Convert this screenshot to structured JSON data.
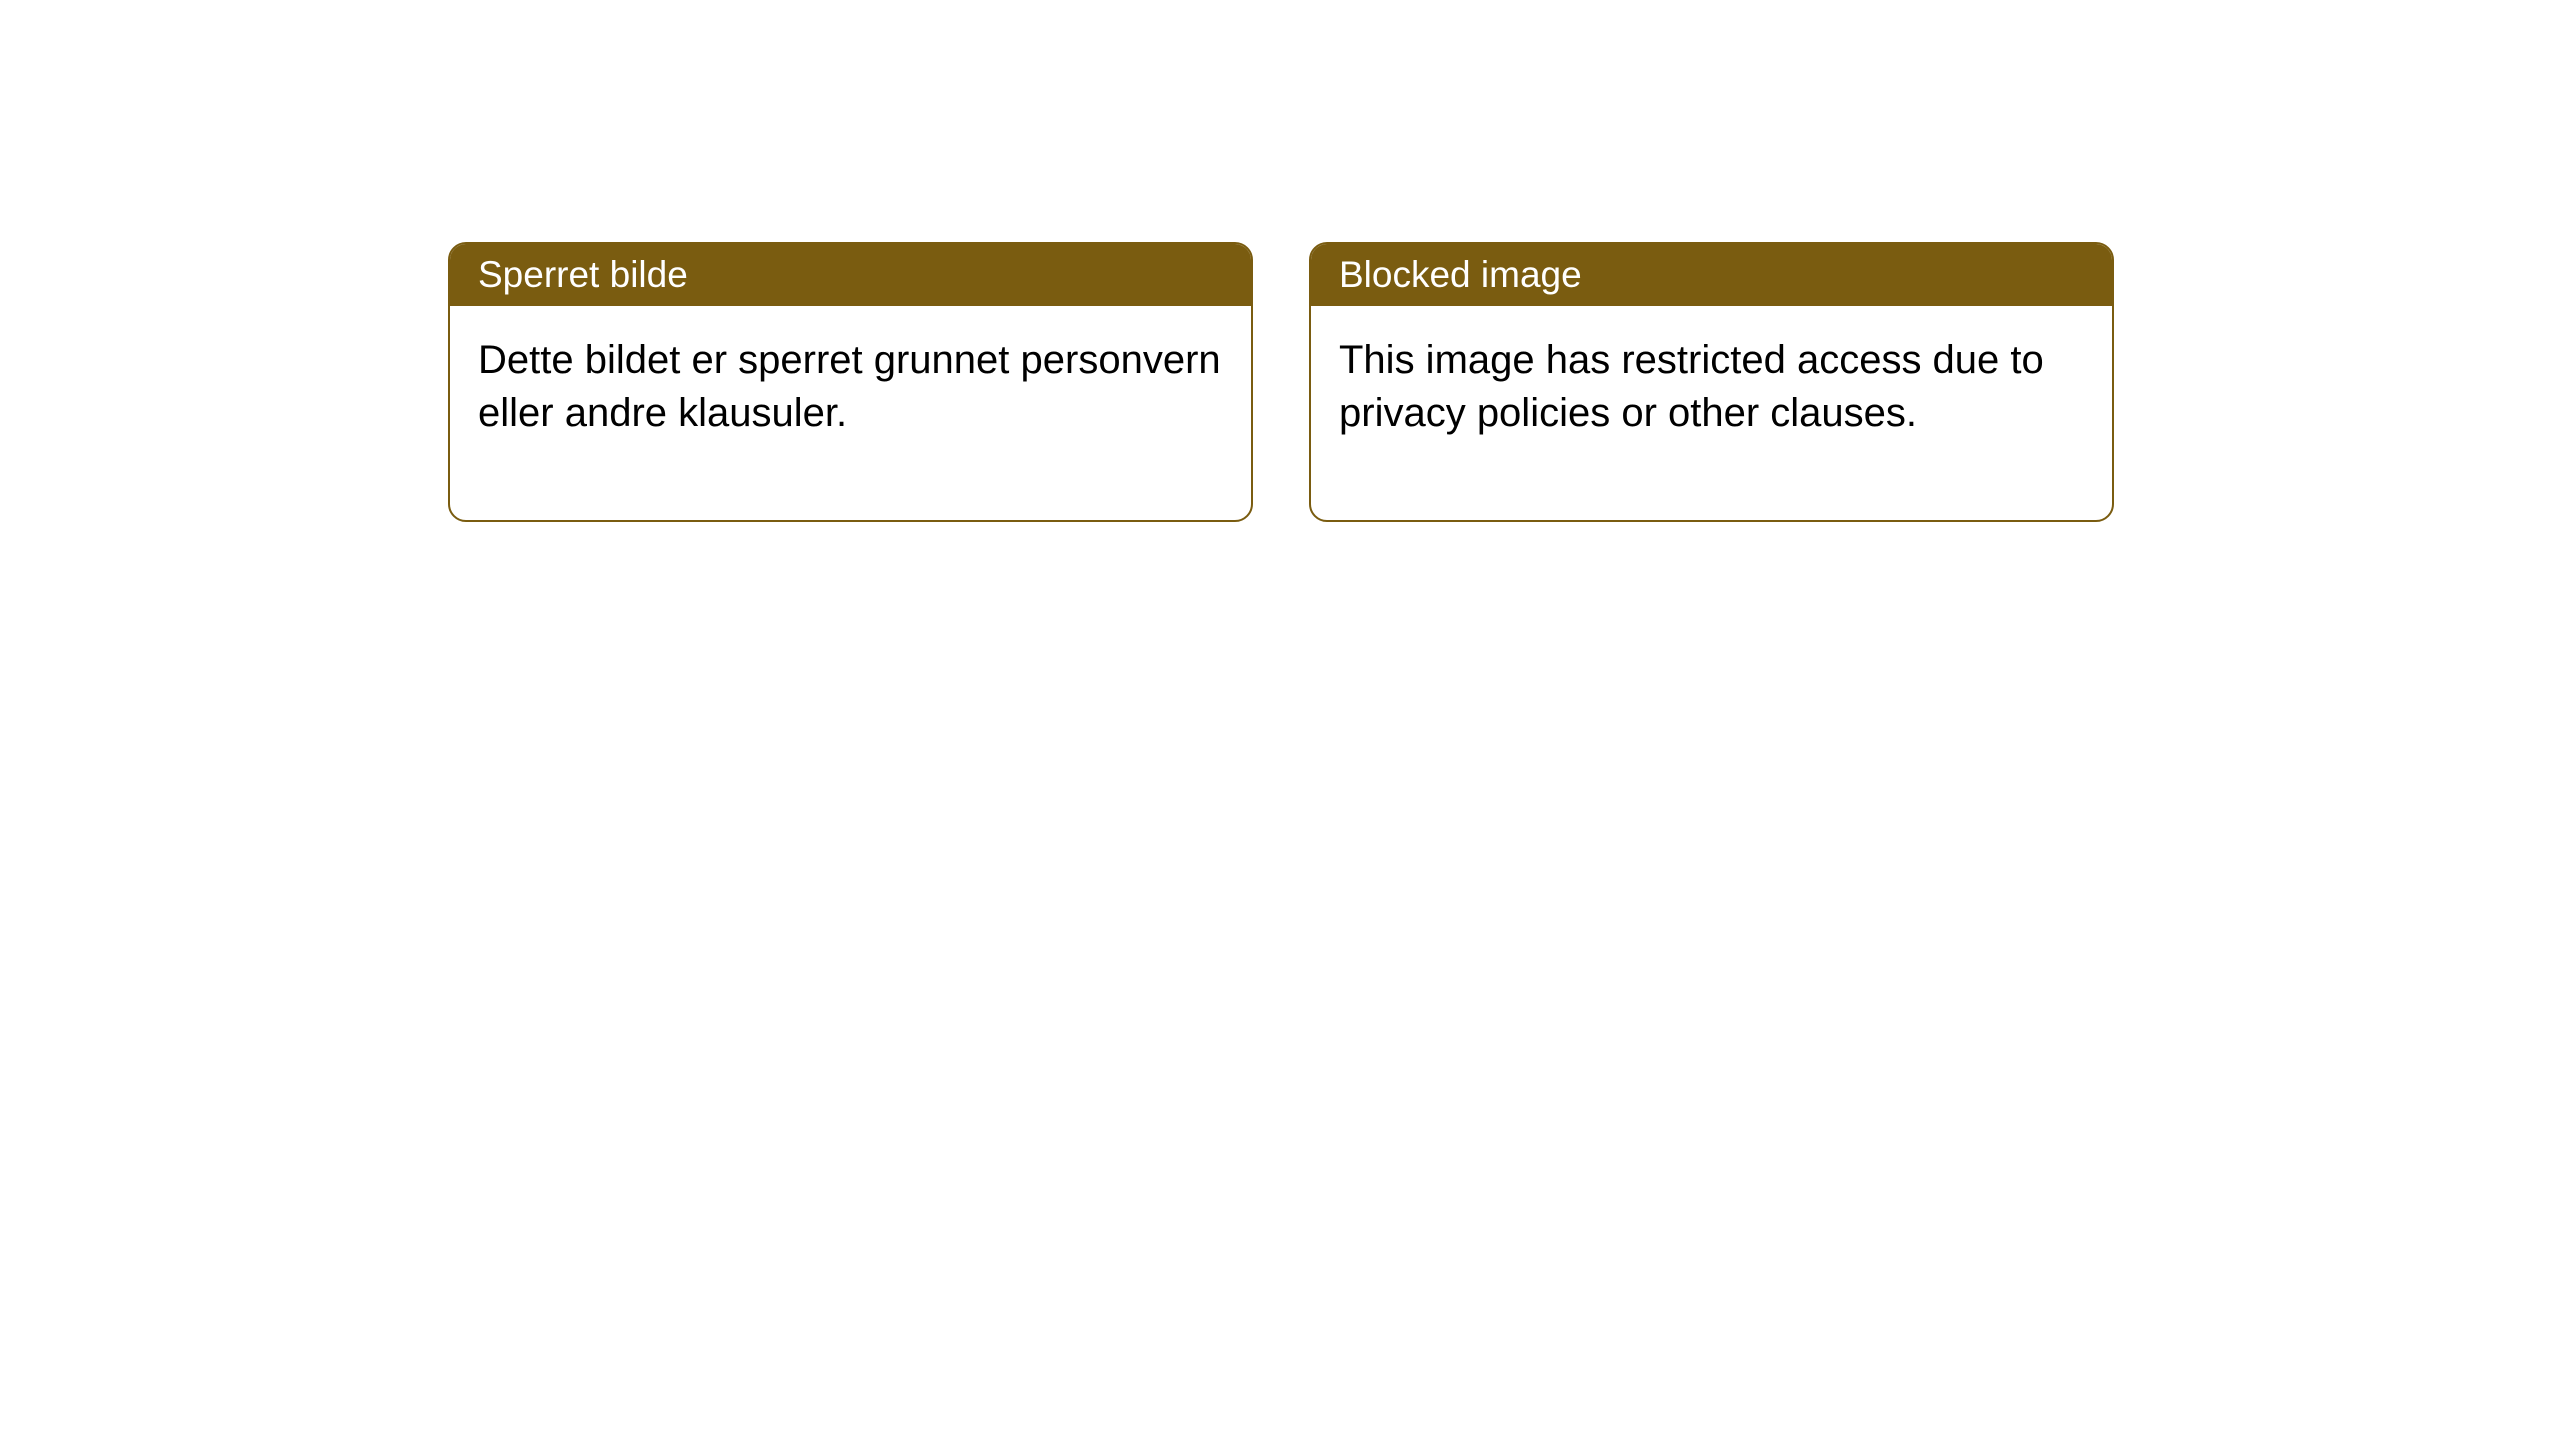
{
  "notices": [
    {
      "title": "Sperret bilde",
      "body": "Dette bildet er sperret grunnet personvern eller andre klausuler."
    },
    {
      "title": "Blocked image",
      "body": "This image has restricted access due to privacy policies or other clauses."
    }
  ],
  "styling": {
    "header_bg_color": "#7a5c10",
    "header_text_color": "#ffffff",
    "border_color": "#7a5c10",
    "body_text_color": "#000000",
    "background_color": "#ffffff",
    "border_radius": 18,
    "title_fontsize": 37,
    "body_fontsize": 40
  }
}
